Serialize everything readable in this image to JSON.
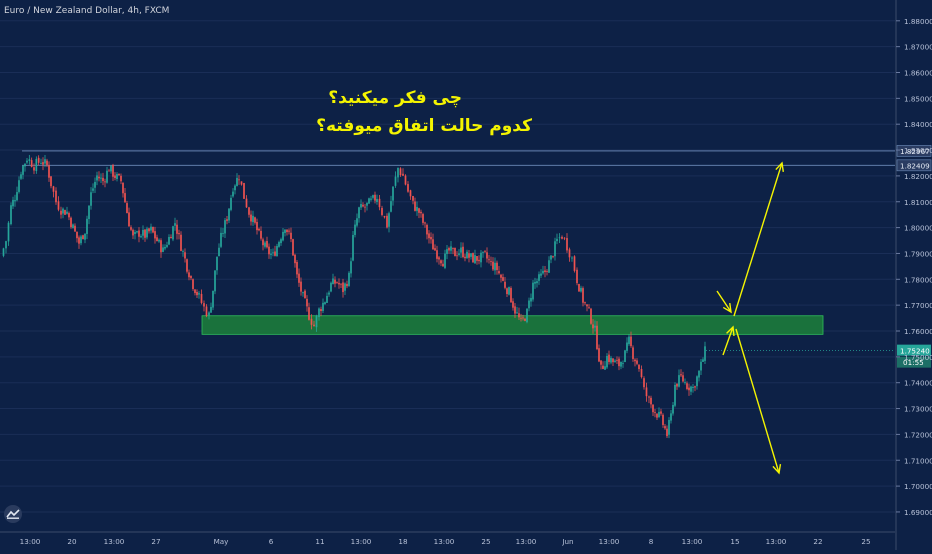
{
  "chart_title": "Euro / New Zealand Dollar, 4h, FXCM",
  "annotation": {
    "line1": "چی فکر میکنید؟",
    "line2": "کدوم حالت اتفاق میوفته؟"
  },
  "colors": {
    "background": "#0d2146",
    "up": "#26a69a",
    "down": "#ef5350",
    "zone_fill": "#1b7a3c",
    "zone_border": "#2fbf5a",
    "arrows": "#f4f401",
    "level_lines": "#6c8bb8",
    "current_price_bg": "#26a69a"
  },
  "chart_data": {
    "type": "candlestick",
    "timeframe": "4h",
    "ylim": [
      1.685,
      1.888
    ],
    "y_ticks": [
      "1.88000",
      "1.87000",
      "1.86000",
      "1.85000",
      "1.84000",
      "1.83000",
      "1.82000",
      "1.81000",
      "1.80000",
      "1.79000",
      "1.78000",
      "1.77000",
      "1.76000",
      "1.75000",
      "1.74000",
      "1.73000",
      "1.72000",
      "1.71000",
      "1.70000",
      "1.69000"
    ],
    "x_ticks": [
      "13:00",
      "20",
      "13:00",
      "27",
      "May",
      "6",
      "11",
      "13:00",
      "18",
      "13:00",
      "25",
      "13:00",
      "Jun",
      "13:00",
      "8",
      "13:00",
      "15",
      "13:00",
      "22",
      "25"
    ],
    "level_labels": [
      "1.82967",
      "1.82409"
    ],
    "levels": [
      1.82967,
      1.82409
    ],
    "current_price_label": "1.75240",
    "current_price": 1.7524,
    "countdown_label": "01:55",
    "zone": {
      "from": 1.7587,
      "to": 1.7659
    },
    "price_path": [
      [
        0,
        1.789
      ],
      [
        5,
        1.795
      ],
      [
        10,
        1.808
      ],
      [
        14,
        1.812
      ],
      [
        20,
        1.822
      ],
      [
        26,
        1.827
      ],
      [
        33,
        1.824
      ],
      [
        40,
        1.826
      ],
      [
        46,
        1.824
      ],
      [
        50,
        1.817
      ],
      [
        55,
        1.81
      ],
      [
        60,
        1.807
      ],
      [
        66,
        1.806
      ],
      [
        72,
        1.8
      ],
      [
        78,
        1.794
      ],
      [
        84,
        1.799
      ],
      [
        90,
        1.813
      ],
      [
        96,
        1.82
      ],
      [
        102,
        1.818
      ],
      [
        108,
        1.823
      ],
      [
        114,
        1.82
      ],
      [
        120,
        1.818
      ],
      [
        124,
        1.81
      ],
      [
        128,
        1.802
      ],
      [
        132,
        1.796
      ],
      [
        138,
        1.798
      ],
      [
        144,
        1.797
      ],
      [
        150,
        1.799
      ],
      [
        156,
        1.795
      ],
      [
        162,
        1.791
      ],
      [
        168,
        1.796
      ],
      [
        174,
        1.802
      ],
      [
        180,
        1.793
      ],
      [
        186,
        1.785
      ],
      [
        192,
        1.778
      ],
      [
        198,
        1.773
      ],
      [
        203,
        1.769
      ],
      [
        208,
        1.766
      ],
      [
        212,
        1.776
      ],
      [
        216,
        1.789
      ],
      [
        220,
        1.796
      ],
      [
        226,
        1.804
      ],
      [
        232,
        1.816
      ],
      [
        238,
        1.82
      ],
      [
        243,
        1.812
      ],
      [
        248,
        1.806
      ],
      [
        254,
        1.801
      ],
      [
        260,
        1.795
      ],
      [
        266,
        1.791
      ],
      [
        272,
        1.789
      ],
      [
        278,
        1.795
      ],
      [
        284,
        1.801
      ],
      [
        290,
        1.795
      ],
      [
        296,
        1.781
      ],
      [
        302,
        1.773
      ],
      [
        308,
        1.766
      ],
      [
        313,
        1.762
      ],
      [
        318,
        1.768
      ],
      [
        324,
        1.772
      ],
      [
        330,
        1.778
      ],
      [
        336,
        1.779
      ],
      [
        342,
        1.776
      ],
      [
        348,
        1.781
      ],
      [
        352,
        1.796
      ],
      [
        358,
        1.807
      ],
      [
        364,
        1.808
      ],
      [
        370,
        1.81
      ],
      [
        376,
        1.812
      ],
      [
        381,
        1.806
      ],
      [
        386,
        1.801
      ],
      [
        392,
        1.815
      ],
      [
        397,
        1.823
      ],
      [
        402,
        1.82
      ],
      [
        407,
        1.814
      ],
      [
        412,
        1.809
      ],
      [
        418,
        1.806
      ],
      [
        424,
        1.8
      ],
      [
        430,
        1.794
      ],
      [
        436,
        1.79
      ],
      [
        442,
        1.787
      ],
      [
        448,
        1.791
      ],
      [
        454,
        1.79
      ],
      [
        460,
        1.791
      ],
      [
        466,
        1.789
      ],
      [
        472,
        1.788
      ],
      [
        478,
        1.788
      ],
      [
        484,
        1.789
      ],
      [
        490,
        1.786
      ],
      [
        496,
        1.784
      ],
      [
        502,
        1.779
      ],
      [
        508,
        1.775
      ],
      [
        514,
        1.768
      ],
      [
        520,
        1.763
      ],
      [
        526,
        1.767
      ],
      [
        532,
        1.778
      ],
      [
        538,
        1.78
      ],
      [
        544,
        1.783
      ],
      [
        550,
        1.788
      ],
      [
        556,
        1.795
      ],
      [
        561,
        1.797
      ],
      [
        566,
        1.793
      ],
      [
        571,
        1.788
      ],
      [
        576,
        1.78
      ],
      [
        582,
        1.772
      ],
      [
        588,
        1.767
      ],
      [
        594,
        1.76
      ],
      [
        600,
        1.745
      ],
      [
        606,
        1.75
      ],
      [
        612,
        1.748
      ],
      [
        618,
        1.747
      ],
      [
        624,
        1.751
      ],
      [
        628,
        1.756
      ],
      [
        632,
        1.751
      ],
      [
        638,
        1.746
      ],
      [
        643,
        1.737
      ],
      [
        648,
        1.733
      ],
      [
        654,
        1.729
      ],
      [
        660,
        1.726
      ],
      [
        666,
        1.72
      ],
      [
        670,
        1.727
      ],
      [
        674,
        1.739
      ],
      [
        680,
        1.742
      ],
      [
        686,
        1.739
      ],
      [
        692,
        1.738
      ],
      [
        698,
        1.744
      ],
      [
        704,
        1.752
      ]
    ]
  }
}
